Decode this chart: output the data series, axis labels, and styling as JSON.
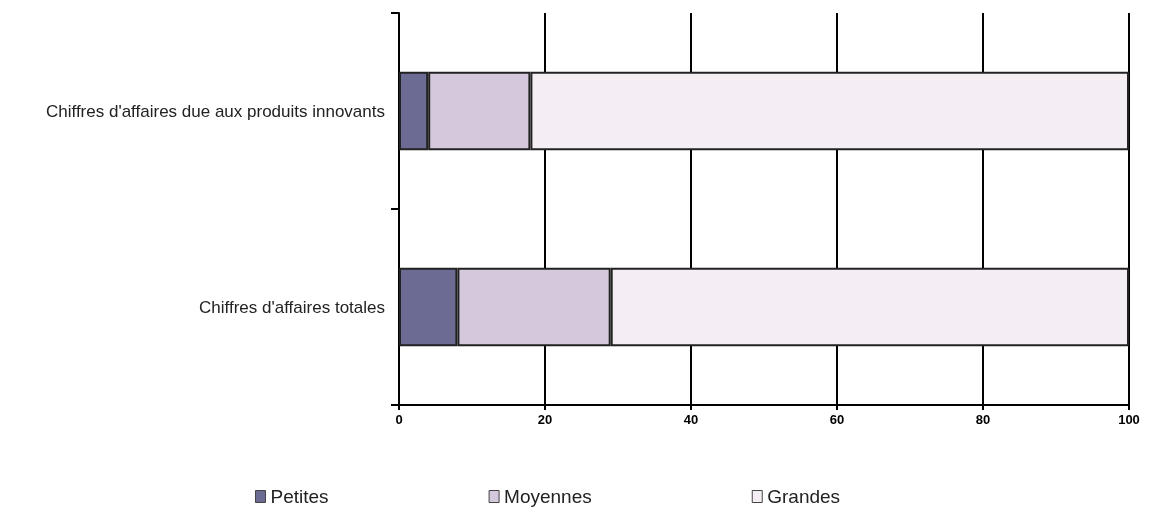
{
  "chart_data": {
    "type": "bar",
    "orientation": "horizontal",
    "stacked": true,
    "categories": [
      "Chiffres d'affaires due aux produits innovants",
      "Chiffres d'affaires totales"
    ],
    "series": [
      {
        "name": "Petites",
        "color": "#6b6b94",
        "values": [
          4,
          8
        ]
      },
      {
        "name": "Moyennes",
        "color": "#d4c8dc",
        "values": [
          14,
          21
        ]
      },
      {
        "name": "Grandes",
        "color": "#f4eef4",
        "values": [
          82,
          71
        ]
      }
    ],
    "xlim": [
      0,
      100
    ],
    "xticks": [
      0,
      20,
      40,
      60,
      80,
      100
    ],
    "grid": "x",
    "legend": "bottom"
  }
}
